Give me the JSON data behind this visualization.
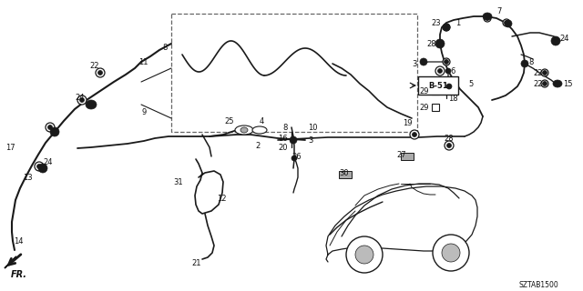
{
  "bg_color": "#ffffff",
  "fig_width": 6.4,
  "fig_height": 3.2,
  "dpi": 100,
  "diagram_code": "SZTAB1500",
  "b51_label": "B-51",
  "fr_label": "FR.",
  "line_color": "#1a1a1a",
  "lw_main": 1.3,
  "lw_thin": 0.8
}
